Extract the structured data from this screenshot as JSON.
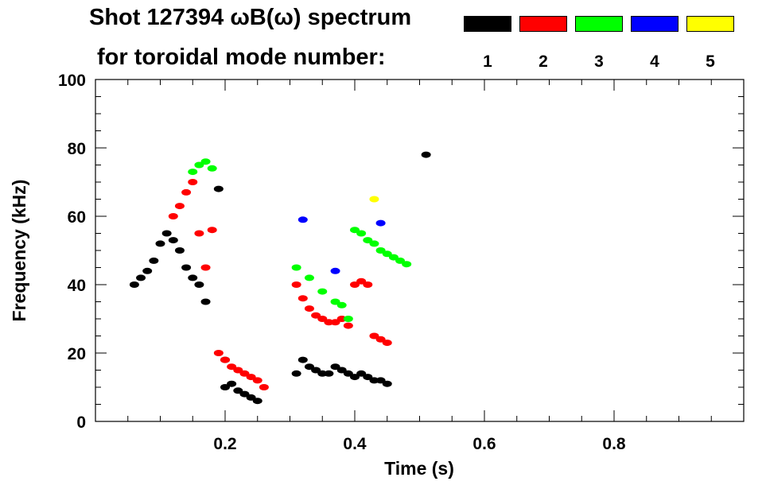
{
  "header": {
    "title_line1": "Shot 127394 ωB(ω) spectrum",
    "title_line2": "for toroidal mode number:"
  },
  "legend": [
    {
      "label": "1",
      "color": "#000000"
    },
    {
      "label": "2",
      "color": "#ff0000"
    },
    {
      "label": "3",
      "color": "#00ff00"
    },
    {
      "label": "4",
      "color": "#0000ff"
    },
    {
      "label": "5",
      "color": "#ffff00"
    }
  ],
  "chart_data": {
    "type": "scatter",
    "title": "Shot 127394 ωB(ω) spectrum",
    "xlabel": "Time (s)",
    "ylabel": "Frequency (kHz)",
    "xlim": [
      0.0,
      1.0
    ],
    "ylim": [
      0,
      100
    ],
    "xticks": [
      0.2,
      0.4,
      0.6,
      0.8
    ],
    "xtick_labels": [
      "0.2",
      "0.4",
      "0.6",
      "0.8"
    ],
    "yticks": [
      0,
      20,
      40,
      60,
      80,
      100
    ],
    "ytick_labels": [
      "0",
      "20",
      "40",
      "60",
      "80",
      "100"
    ],
    "grid": false,
    "legend_position": "top-right",
    "series": [
      {
        "name": "1",
        "color": "#000000",
        "x": [
          0.06,
          0.07,
          0.08,
          0.09,
          0.1,
          0.11,
          0.12,
          0.13,
          0.14,
          0.15,
          0.16,
          0.17,
          0.19,
          0.2,
          0.2,
          0.21,
          0.22,
          0.23,
          0.24,
          0.25,
          0.31,
          0.32,
          0.33,
          0.34,
          0.35,
          0.36,
          0.37,
          0.38,
          0.39,
          0.4,
          0.41,
          0.42,
          0.43,
          0.44,
          0.45,
          0.51
        ],
        "y": [
          40,
          42,
          44,
          47,
          52,
          55,
          53,
          50,
          45,
          42,
          40,
          35,
          68,
          10,
          18,
          11,
          9,
          8,
          7,
          6,
          14,
          18,
          16,
          15,
          14,
          14,
          16,
          15,
          14,
          13,
          14,
          13,
          12,
          12,
          11,
          78
        ]
      },
      {
        "name": "2",
        "color": "#ff0000",
        "x": [
          0.12,
          0.13,
          0.14,
          0.15,
          0.16,
          0.17,
          0.18,
          0.19,
          0.2,
          0.21,
          0.22,
          0.23,
          0.24,
          0.25,
          0.26,
          0.31,
          0.32,
          0.33,
          0.34,
          0.35,
          0.36,
          0.37,
          0.38,
          0.39,
          0.4,
          0.41,
          0.42,
          0.43,
          0.44,
          0.45
        ],
        "y": [
          60,
          63,
          67,
          70,
          55,
          45,
          56,
          20,
          18,
          16,
          15,
          14,
          13,
          12,
          10,
          40,
          36,
          33,
          31,
          30,
          29,
          29,
          30,
          28,
          40,
          41,
          40,
          25,
          24,
          23
        ]
      },
      {
        "name": "3",
        "color": "#00ff00",
        "x": [
          0.15,
          0.16,
          0.17,
          0.18,
          0.31,
          0.33,
          0.35,
          0.37,
          0.38,
          0.39,
          0.4,
          0.41,
          0.42,
          0.43,
          0.44,
          0.45,
          0.46,
          0.47,
          0.48
        ],
        "y": [
          73,
          75,
          76,
          74,
          45,
          42,
          38,
          35,
          34,
          30,
          56,
          55,
          53,
          52,
          50,
          49,
          48,
          47,
          46
        ]
      },
      {
        "name": "4",
        "color": "#0000ff",
        "x": [
          0.32,
          0.37,
          0.44
        ],
        "y": [
          59,
          44,
          58
        ]
      },
      {
        "name": "5",
        "color": "#ffff00",
        "x": [
          0.43
        ],
        "y": [
          65
        ]
      }
    ]
  }
}
